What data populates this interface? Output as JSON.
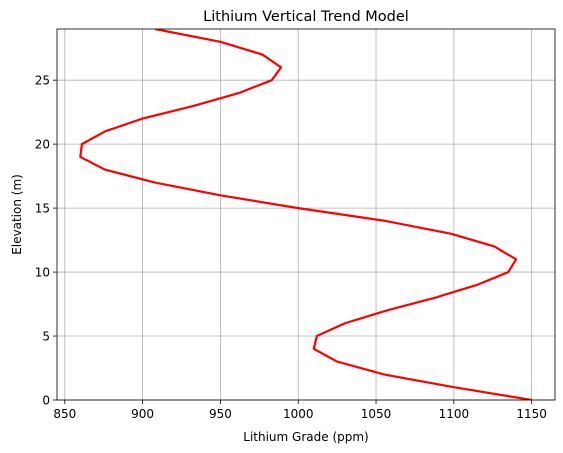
{
  "chart_data": {
    "type": "line",
    "title": "Lithium Vertical Trend Model",
    "xlabel": "Lithium Grade (ppm)",
    "ylabel": "Elevation (m)",
    "xlim": [
      845,
      1165
    ],
    "ylim": [
      0,
      29
    ],
    "xticks": [
      850,
      900,
      950,
      1000,
      1050,
      1100,
      1150
    ],
    "yticks": [
      0,
      5,
      10,
      15,
      20,
      25
    ],
    "grid": true,
    "series": [
      {
        "color": "#ff0000",
        "points": [
          [
            1150,
            0
          ],
          [
            1100,
            1
          ],
          [
            1055,
            2
          ],
          [
            1025,
            3
          ],
          [
            1010,
            4
          ],
          [
            1012,
            5
          ],
          [
            1030,
            6
          ],
          [
            1057,
            7
          ],
          [
            1088,
            8
          ],
          [
            1115,
            9
          ],
          [
            1135,
            10
          ],
          [
            1140,
            11
          ],
          [
            1126,
            12
          ],
          [
            1098,
            13
          ],
          [
            1056,
            14
          ],
          [
            1000,
            15
          ],
          [
            950,
            16
          ],
          [
            908,
            17
          ],
          [
            876,
            18
          ],
          [
            860,
            19
          ],
          [
            861,
            20
          ],
          [
            876,
            21
          ],
          [
            900,
            22
          ],
          [
            933,
            23
          ],
          [
            962,
            24
          ],
          [
            983,
            25
          ],
          [
            989,
            26
          ],
          [
            977,
            27
          ],
          [
            950,
            28
          ],
          [
            908,
            29
          ]
        ]
      }
    ]
  }
}
